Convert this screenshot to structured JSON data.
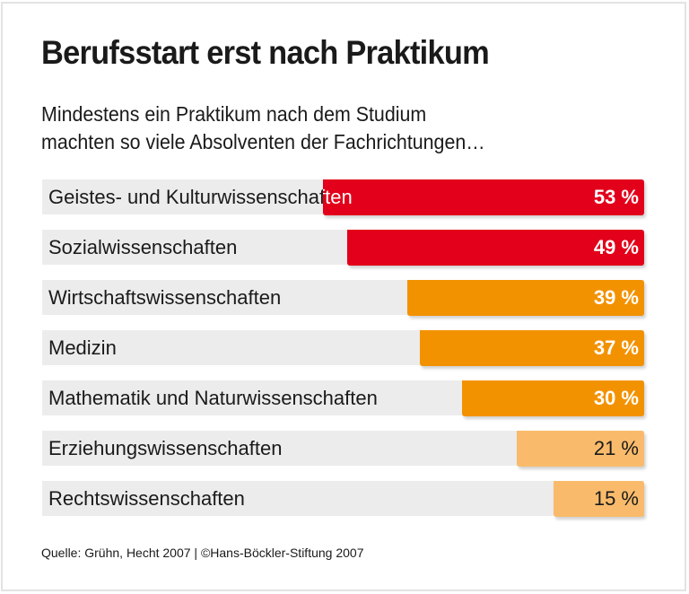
{
  "header": {
    "title": "Berufsstart erst nach Praktikum",
    "subtitle": "Mindestens ein Praktikum nach dem Studium\nmachten so viele Absolventen der Fachrichtungen…"
  },
  "colors": {
    "track": "#ececec",
    "red": "#e2001a",
    "orange": "#f39200",
    "light_orange": "#f9bb6b",
    "text_dark": "#1a1a1a",
    "text_light": "#ffffff"
  },
  "chart_data": {
    "type": "bar",
    "orientation": "horizontal",
    "title": "Berufsstart erst nach Praktikum",
    "subtitle": "Mindestens ein Praktikum nach dem Studium machten so viele Absolventen der Fachrichtungen…",
    "xlabel": "",
    "ylabel": "",
    "unit": "%",
    "xlim": [
      0,
      100
    ],
    "grid": false,
    "legend": "none",
    "categories": [
      "Geistes- und Kulturwissenschaften",
      "Sozialwissenschaften",
      "Wirtschaftswissenschaften",
      "Medizin",
      "Mathematik und Naturwissenschaften",
      "Erziehungswissenschaften",
      "Rechtswissenschaften"
    ],
    "values": [
      53,
      49,
      39,
      37,
      30,
      21,
      15
    ],
    "value_labels": [
      "53 %",
      "49 %",
      "39 %",
      "37 %",
      "30 %",
      "21 %",
      "15 %"
    ],
    "bar_colors": [
      "#e2001a",
      "#e2001a",
      "#f39200",
      "#f39200",
      "#f39200",
      "#f9bb6b",
      "#f9bb6b"
    ],
    "value_label_colors": [
      "#ffffff",
      "#ffffff",
      "#ffffff",
      "#ffffff",
      "#ffffff",
      "#1a1a1a",
      "#1a1a1a"
    ],
    "value_label_bold": [
      true,
      true,
      true,
      true,
      true,
      false,
      false
    ]
  },
  "footer": {
    "source": "Quelle: Grühn, Hecht 2007 | ©Hans-Böckler-Stiftung 2007"
  }
}
